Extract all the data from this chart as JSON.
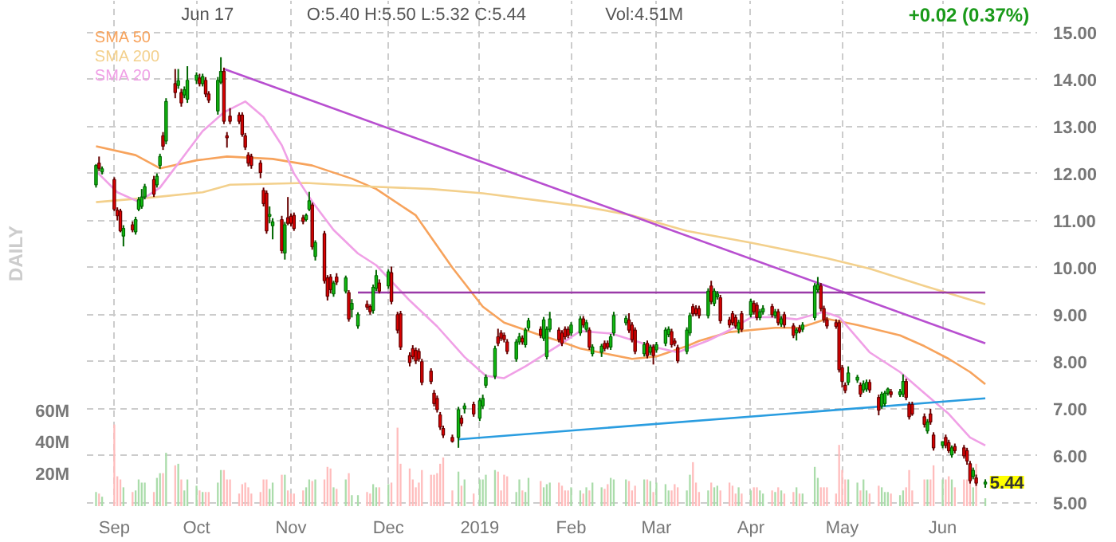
{
  "chart_data": {
    "type": "candlestick",
    "y2label": "DAILY",
    "annotations": [
      "Jun 17",
      "O:5.40 H:5.50 L:5.32 C:5.44",
      "Vol:4.51M",
      "+0.02 (0.37%)",
      {
        "text": "5.44",
        "x": "2019-06-17",
        "y": 5.44
      }
    ],
    "x": [
      "2018-08-29",
      "2018-08-30",
      "2018-08-31",
      "2018-09-04",
      "2018-09-05",
      "2018-09-06",
      "2018-09-07",
      "2018-09-10",
      "2018-09-11",
      "2018-09-12",
      "2018-09-13",
      "2018-09-14",
      "2018-09-17",
      "2018-09-18",
      "2018-09-19",
      "2018-09-20",
      "2018-09-21",
      "2018-09-24",
      "2018-09-25",
      "2018-09-26",
      "2018-09-27",
      "2018-09-28",
      "2018-10-01",
      "2018-10-02",
      "2018-10-03",
      "2018-10-04",
      "2018-10-05",
      "2018-10-08",
      "2018-10-09",
      "2018-10-10",
      "2018-10-11",
      "2018-10-12",
      "2018-10-15",
      "2018-10-16",
      "2018-10-17",
      "2018-10-18",
      "2018-10-19",
      "2018-10-22",
      "2018-10-23",
      "2018-10-24",
      "2018-10-25",
      "2018-10-26",
      "2018-10-29",
      "2018-10-30",
      "2018-10-31",
      "2018-11-01",
      "2018-11-02",
      "2018-11-05",
      "2018-11-06",
      "2018-11-07",
      "2018-11-08",
      "2018-11-09",
      "2018-11-12",
      "2018-11-13",
      "2018-11-14",
      "2018-11-15",
      "2018-11-16",
      "2018-11-19",
      "2018-11-20",
      "2018-11-21",
      "2018-11-23",
      "2018-11-26",
      "2018-11-27",
      "2018-11-28",
      "2018-11-29",
      "2018-11-30",
      "2018-12-03",
      "2018-12-04",
      "2018-12-06",
      "2018-12-07",
      "2018-12-10",
      "2018-12-11",
      "2018-12-12",
      "2018-12-13",
      "2018-12-14",
      "2018-12-17",
      "2018-12-18",
      "2018-12-19",
      "2018-12-20",
      "2018-12-21",
      "2018-12-24",
      "2018-12-26",
      "2018-12-27",
      "2018-12-28",
      "2018-12-31",
      "2019-01-02",
      "2019-01-03",
      "2019-01-04",
      "2019-01-07",
      "2019-01-08",
      "2019-01-09",
      "2019-01-10",
      "2019-01-11",
      "2019-01-14",
      "2019-01-15",
      "2019-01-16",
      "2019-01-17",
      "2019-01-18",
      "2019-01-22",
      "2019-01-23",
      "2019-01-24",
      "2019-01-25",
      "2019-01-28",
      "2019-01-29",
      "2019-01-30",
      "2019-01-31",
      "2019-02-01",
      "2019-02-04",
      "2019-02-05",
      "2019-02-06",
      "2019-02-07",
      "2019-02-08",
      "2019-02-11",
      "2019-02-12",
      "2019-02-13",
      "2019-02-14",
      "2019-02-15",
      "2019-02-19",
      "2019-02-20",
      "2019-02-21",
      "2019-02-22",
      "2019-02-25",
      "2019-02-26",
      "2019-02-27",
      "2019-02-28",
      "2019-03-01",
      "2019-03-04",
      "2019-03-05",
      "2019-03-06",
      "2019-03-07",
      "2019-03-08",
      "2019-03-11",
      "2019-03-12",
      "2019-03-13",
      "2019-03-14",
      "2019-03-15",
      "2019-03-18",
      "2019-03-19",
      "2019-03-20",
      "2019-03-21",
      "2019-03-22",
      "2019-03-25",
      "2019-03-26",
      "2019-03-27",
      "2019-03-28",
      "2019-03-29",
      "2019-04-01",
      "2019-04-02",
      "2019-04-03",
      "2019-04-04",
      "2019-04-05",
      "2019-04-08",
      "2019-04-09",
      "2019-04-10",
      "2019-04-11",
      "2019-04-12",
      "2019-04-15",
      "2019-04-16",
      "2019-04-17",
      "2019-04-18",
      "2019-04-22",
      "2019-04-23",
      "2019-04-24",
      "2019-04-25",
      "2019-04-26",
      "2019-04-29",
      "2019-04-30",
      "2019-05-01",
      "2019-05-02",
      "2019-05-03",
      "2019-05-06",
      "2019-05-07",
      "2019-05-08",
      "2019-05-09",
      "2019-05-10",
      "2019-05-13",
      "2019-05-14",
      "2019-05-15",
      "2019-05-16",
      "2019-05-17",
      "2019-05-20",
      "2019-05-21",
      "2019-05-22",
      "2019-05-23",
      "2019-05-24",
      "2019-05-28",
      "2019-05-29",
      "2019-05-30",
      "2019-05-31",
      "2019-06-03",
      "2019-06-04",
      "2019-06-05",
      "2019-06-06",
      "2019-06-07",
      "2019-06-10",
      "2019-06-11",
      "2019-06-12",
      "2019-06-13",
      "2019-06-14",
      "2019-06-17"
    ],
    "ohlc": [
      [
        11.76,
        12.2,
        11.7,
        12.17
      ],
      [
        12.22,
        12.36,
        12.05,
        12.11
      ],
      [
        12.04,
        12.15,
        11.98,
        12.1
      ],
      [
        11.87,
        11.92,
        11.2,
        11.24
      ],
      [
        11.22,
        11.28,
        11.0,
        11.1
      ],
      [
        11.2,
        11.25,
        10.75,
        10.78
      ],
      [
        10.67,
        10.9,
        10.45,
        10.83
      ],
      [
        10.91,
        10.98,
        10.75,
        10.8
      ],
      [
        10.76,
        11.08,
        10.7,
        11.02
      ],
      [
        11.24,
        11.5,
        11.2,
        11.44
      ],
      [
        11.3,
        11.67,
        11.25,
        11.5
      ],
      [
        11.5,
        11.78,
        11.45,
        11.72
      ],
      [
        11.87,
        11.95,
        11.5,
        11.56
      ],
      [
        11.76,
        12.0,
        11.7,
        11.94
      ],
      [
        12.17,
        12.42,
        12.1,
        12.36
      ],
      [
        12.8,
        12.88,
        12.5,
        12.58
      ],
      [
        12.69,
        13.6,
        12.62,
        13.53
      ],
      [
        13.91,
        14.22,
        13.6,
        13.72
      ],
      [
        13.87,
        14.22,
        13.8,
        13.97
      ],
      [
        13.72,
        13.8,
        13.42,
        13.5
      ],
      [
        13.67,
        13.85,
        13.6,
        13.78
      ],
      [
        13.58,
        14.28,
        13.5,
        13.98
      ],
      [
        13.98,
        14.15,
        13.9,
        14.09
      ],
      [
        14.03,
        14.12,
        13.85,
        13.91
      ],
      [
        13.91,
        14.12,
        13.85,
        14.06
      ],
      [
        13.98,
        14.05,
        13.62,
        13.69
      ],
      [
        13.69,
        13.75,
        13.5,
        13.56
      ],
      [
        13.33,
        14.05,
        13.25,
        13.98
      ],
      [
        13.94,
        14.47,
        13.9,
        14.17
      ],
      [
        14.17,
        14.25,
        13.05,
        13.11
      ],
      [
        12.8,
        12.88,
        12.55,
        12.76
      ],
      [
        13.22,
        13.39,
        13.05,
        13.11
      ],
      [
        13.24,
        13.3,
        13.05,
        13.11
      ],
      [
        13.24,
        13.3,
        12.78,
        12.83
      ],
      [
        12.8,
        12.86,
        12.5,
        12.56
      ],
      [
        12.39,
        12.45,
        12.15,
        12.22
      ],
      [
        12.36,
        12.42,
        12.1,
        12.17
      ],
      [
        12.22,
        12.28,
        11.9,
        12.02
      ],
      [
        11.64,
        11.7,
        11.3,
        11.36
      ],
      [
        11.58,
        11.64,
        10.72,
        10.78
      ],
      [
        11.09,
        11.3,
        10.94,
        11.13
      ],
      [
        10.89,
        11.05,
        10.6,
        10.97
      ],
      [
        11.02,
        11.1,
        10.3,
        10.36
      ],
      [
        10.31,
        10.97,
        10.17,
        10.91
      ],
      [
        11.06,
        11.5,
        10.9,
        10.94
      ],
      [
        11.09,
        11.15,
        10.88,
        10.94
      ],
      [
        11.11,
        11.17,
        10.78,
        10.83
      ],
      [
        11.06,
        11.12,
        10.92,
        10.98
      ],
      [
        11.02,
        11.15,
        10.98,
        11.11
      ],
      [
        11.24,
        11.61,
        11.2,
        11.42
      ],
      [
        11.33,
        11.38,
        10.38,
        10.44
      ],
      [
        10.24,
        10.58,
        10.15,
        10.53
      ],
      [
        10.72,
        10.78,
        9.66,
        9.72
      ],
      [
        9.78,
        9.84,
        9.3,
        9.39
      ],
      [
        9.8,
        9.86,
        9.45,
        9.53
      ],
      [
        9.44,
        9.72,
        9.38,
        9.67
      ],
      [
        9.8,
        9.88,
        9.63,
        9.69
      ],
      [
        9.5,
        9.83,
        9.45,
        9.78
      ],
      [
        9.47,
        9.52,
        8.85,
        8.91
      ],
      [
        9.11,
        9.33,
        8.94,
        9.24
      ],
      [
        8.76,
        9.05,
        8.7,
        9.0
      ],
      [
        9.22,
        9.3,
        9.1,
        9.16
      ],
      [
        9.17,
        9.22,
        9.0,
        9.06
      ],
      [
        9.09,
        9.64,
        9.02,
        9.58
      ],
      [
        9.56,
        9.95,
        9.5,
        9.83
      ],
      [
        9.67,
        9.75,
        9.45,
        9.5
      ],
      [
        9.61,
        9.96,
        9.55,
        9.91
      ],
      [
        9.89,
        10.02,
        9.22,
        9.28
      ],
      [
        9.0,
        9.06,
        8.6,
        8.67
      ],
      [
        9.02,
        9.08,
        8.25,
        8.31
      ],
      [
        8.13,
        8.2,
        7.9,
        7.98
      ],
      [
        8.28,
        8.35,
        8.05,
        8.11
      ],
      [
        8.24,
        8.3,
        7.95,
        8.02
      ],
      [
        8.22,
        8.28,
        8.0,
        8.06
      ],
      [
        8.0,
        8.06,
        7.5,
        7.56
      ],
      [
        7.8,
        7.86,
        7.52,
        7.58
      ],
      [
        7.33,
        7.4,
        7.05,
        7.11
      ],
      [
        7.22,
        7.28,
        6.92,
        6.98
      ],
      [
        6.87,
        6.93,
        6.55,
        6.61
      ],
      [
        6.58,
        6.64,
        6.38,
        6.44
      ],
      [
        6.39,
        6.45,
        6.28,
        6.31
      ],
      [
        6.39,
        7.04,
        6.17,
        6.98
      ],
      [
        6.8,
        6.86,
        6.63,
        6.69
      ],
      [
        7.0,
        7.12,
        6.9,
        7.06
      ],
      [
        7.09,
        7.15,
        6.83,
        6.89
      ],
      [
        6.8,
        7.23,
        6.74,
        7.17
      ],
      [
        7.06,
        7.3,
        7.0,
        7.22
      ],
      [
        7.5,
        7.73,
        7.44,
        7.67
      ],
      [
        7.69,
        8.34,
        7.63,
        8.28
      ],
      [
        8.53,
        8.7,
        8.33,
        8.39
      ],
      [
        8.61,
        8.67,
        8.44,
        8.5
      ],
      [
        8.56,
        8.62,
        8.41,
        8.47
      ],
      [
        8.42,
        8.48,
        8.16,
        8.22
      ],
      [
        8.06,
        8.48,
        8.0,
        8.42
      ],
      [
        8.42,
        8.61,
        8.36,
        8.53
      ],
      [
        8.5,
        8.56,
        8.36,
        8.42
      ],
      [
        8.36,
        8.72,
        8.3,
        8.67
      ],
      [
        8.72,
        8.93,
        8.66,
        8.87
      ],
      [
        8.69,
        8.75,
        8.5,
        8.56
      ],
      [
        8.5,
        8.95,
        8.44,
        8.89
      ],
      [
        8.11,
        8.75,
        8.05,
        8.69
      ],
      [
        8.69,
        9.06,
        8.63,
        8.91
      ],
      [
        8.67,
        8.73,
        8.41,
        8.47
      ],
      [
        8.61,
        8.67,
        8.33,
        8.39
      ],
      [
        8.69,
        8.75,
        8.47,
        8.53
      ],
      [
        8.69,
        8.75,
        8.5,
        8.56
      ],
      [
        8.61,
        8.84,
        8.55,
        8.78
      ],
      [
        8.61,
        8.97,
        8.55,
        8.91
      ],
      [
        8.91,
        8.97,
        8.72,
        8.78
      ],
      [
        8.69,
        8.89,
        8.63,
        8.83
      ],
      [
        8.67,
        8.73,
        8.25,
        8.31
      ],
      [
        8.17,
        8.37,
        8.11,
        8.31
      ],
      [
        8.2,
        8.38,
        8.1,
        8.33
      ],
      [
        8.39,
        8.45,
        8.22,
        8.28
      ],
      [
        8.39,
        8.45,
        8.26,
        8.31
      ],
      [
        8.31,
        8.59,
        8.25,
        8.53
      ],
      [
        8.61,
        9.06,
        8.55,
        8.98
      ],
      [
        8.83,
        8.98,
        8.77,
        8.92
      ],
      [
        8.89,
        9.03,
        8.61,
        8.67
      ],
      [
        8.78,
        8.84,
        8.41,
        8.47
      ],
      [
        8.67,
        8.73,
        8.16,
        8.22
      ],
      [
        8.17,
        8.42,
        8.11,
        8.36
      ],
      [
        8.39,
        8.45,
        8.07,
        8.13
      ],
      [
        8.2,
        8.36,
        8.14,
        8.31
      ],
      [
        8.31,
        8.37,
        7.94,
        8.13
      ],
      [
        8.25,
        8.42,
        8.19,
        8.36
      ],
      [
        8.39,
        8.73,
        8.33,
        8.67
      ],
      [
        8.58,
        8.75,
        8.52,
        8.69
      ],
      [
        8.64,
        8.7,
        8.3,
        8.36
      ],
      [
        8.44,
        8.5,
        8.33,
        8.39
      ],
      [
        8.3,
        8.36,
        7.97,
        8.02
      ],
      [
        8.22,
        8.73,
        8.16,
        8.67
      ],
      [
        8.61,
        9.04,
        8.55,
        8.98
      ],
      [
        9.17,
        9.23,
        8.96,
        9.02
      ],
      [
        9.13,
        9.2,
        8.97,
        9.02
      ],
      [
        9.13,
        9.19,
        8.92,
        8.98
      ],
      [
        8.98,
        9.56,
        8.92,
        9.5
      ],
      [
        9.61,
        9.72,
        9.22,
        9.28
      ],
      [
        9.24,
        9.56,
        9.18,
        9.5
      ],
      [
        9.38,
        9.5,
        9.32,
        9.44
      ],
      [
        9.36,
        9.42,
        8.81,
        8.87
      ],
      [
        8.89,
        8.95,
        8.72,
        8.78
      ],
      [
        9.02,
        9.08,
        8.77,
        8.83
      ],
      [
        8.94,
        9.0,
        8.7,
        8.76
      ],
      [
        8.69,
        8.89,
        8.6,
        8.83
      ],
      [
        9.02,
        9.08,
        8.63,
        8.69
      ],
      [
        9.0,
        9.34,
        8.94,
        9.28
      ],
      [
        9.24,
        9.3,
        9.0,
        9.06
      ],
      [
        9.2,
        9.26,
        8.88,
        8.94
      ],
      [
        8.94,
        9.12,
        8.88,
        9.06
      ],
      [
        9.06,
        9.2,
        9.0,
        9.13
      ],
      [
        9.17,
        9.23,
        8.94,
        9.0
      ],
      [
        8.98,
        9.12,
        8.92,
        9.06
      ],
      [
        9.06,
        9.12,
        8.77,
        8.83
      ],
      [
        8.8,
        8.97,
        8.74,
        8.91
      ],
      [
        9.0,
        9.06,
        8.72,
        8.78
      ],
      [
        8.76,
        8.82,
        8.5,
        8.56
      ],
      [
        8.61,
        8.72,
        8.45,
        8.67
      ],
      [
        8.72,
        8.78,
        8.6,
        8.64
      ],
      [
        8.69,
        8.84,
        8.63,
        8.78
      ],
      [
        8.94,
        9.67,
        8.88,
        9.61
      ],
      [
        9.53,
        9.8,
        9.47,
        9.64
      ],
      [
        9.61,
        9.67,
        9.07,
        9.13
      ],
      [
        9.13,
        9.19,
        8.83,
        8.89
      ],
      [
        8.89,
        8.95,
        8.7,
        8.76
      ],
      [
        8.83,
        8.9,
        8.7,
        8.75
      ],
      [
        8.83,
        8.89,
        7.77,
        7.83
      ],
      [
        7.87,
        7.93,
        7.45,
        7.58
      ],
      [
        7.5,
        7.56,
        7.33,
        7.39
      ],
      [
        7.56,
        7.9,
        7.5,
        7.76
      ],
      [
        7.61,
        7.72,
        7.55,
        7.67
      ],
      [
        7.5,
        7.56,
        7.25,
        7.31
      ],
      [
        7.4,
        7.6,
        7.34,
        7.53
      ],
      [
        7.42,
        7.62,
        7.36,
        7.56
      ],
      [
        7.56,
        7.62,
        7.34,
        7.4
      ],
      [
        7.24,
        7.3,
        6.86,
        6.97
      ],
      [
        7.06,
        7.36,
        7.0,
        7.31
      ],
      [
        7.11,
        7.38,
        7.05,
        7.33
      ],
      [
        7.33,
        7.45,
        7.28,
        7.42
      ],
      [
        7.36,
        7.42,
        7.24,
        7.3
      ],
      [
        7.3,
        7.42,
        7.25,
        7.36
      ],
      [
        7.31,
        7.73,
        7.25,
        7.58
      ],
      [
        7.58,
        7.64,
        7.18,
        7.24
      ],
      [
        7.09,
        7.15,
        6.77,
        6.83
      ],
      [
        7.09,
        7.15,
        6.85,
        6.89
      ],
      [
        6.83,
        6.9,
        6.6,
        6.67
      ],
      [
        6.53,
        6.78,
        6.47,
        6.72
      ],
      [
        6.89,
        7.0,
        6.66,
        6.72
      ],
      [
        6.44,
        6.5,
        6.11,
        6.17
      ],
      [
        6.22,
        6.3,
        6.16,
        6.3
      ],
      [
        6.39,
        6.45,
        6.16,
        6.22
      ],
      [
        6.28,
        6.34,
        6.06,
        6.11
      ],
      [
        6.02,
        6.22,
        5.96,
        6.17
      ],
      [
        6.2,
        6.26,
        6.05,
        6.11
      ],
      [
        6.17,
        6.23,
        5.94,
        6.0
      ],
      [
        6.11,
        6.17,
        5.81,
        5.89
      ],
      [
        5.83,
        5.89,
        5.41,
        5.47
      ],
      [
        5.56,
        5.75,
        5.5,
        5.69
      ],
      [
        5.53,
        5.6,
        5.36,
        5.42
      ],
      [
        5.4,
        5.5,
        5.32,
        5.44
      ]
    ],
    "series": [
      {
        "type": "bar",
        "axis": "y2",
        "values": [
          9,
          8,
          6,
          52,
          19,
          17,
          12,
          9,
          10,
          17,
          15,
          15,
          9,
          18,
          21,
          21,
          34,
          26,
          27,
          17,
          10,
          17,
          13,
          10,
          9,
          9,
          9,
          15,
          23,
          23,
          17,
          17,
          8,
          14,
          15,
          12,
          8,
          9,
          17,
          17,
          11,
          15,
          20,
          20,
          10,
          8,
          8,
          10,
          12,
          17,
          16,
          17,
          17,
          25,
          24,
          12,
          11,
          17,
          21,
          7,
          7,
          9,
          8,
          14,
          12,
          12,
          14,
          15,
          50,
          27,
          24,
          17,
          12,
          15,
          23,
          20,
          20,
          21,
          27,
          31,
          10,
          22,
          13,
          17,
          8,
          17,
          17,
          20,
          23,
          22,
          10,
          20,
          19,
          9,
          17,
          10,
          9,
          18,
          16,
          12,
          14,
          15,
          15,
          13,
          10,
          10,
          12,
          10,
          8,
          12,
          10,
          15,
          12,
          11,
          14,
          18,
          17,
          17,
          16,
          10,
          13,
          17,
          17,
          16,
          9,
          15,
          14,
          10,
          10,
          14,
          12,
          10,
          20,
          28,
          15,
          9,
          10,
          15,
          12,
          13,
          10,
          15,
          13,
          8,
          12,
          8,
          10,
          12,
          12,
          10,
          8,
          10,
          9,
          12,
          10,
          8,
          9,
          12,
          8,
          8,
          25,
          18,
          12,
          12,
          12,
          8,
          39,
          23,
          17,
          17,
          15,
          10,
          17,
          10,
          8,
          13,
          12,
          9,
          9,
          8,
          7,
          10,
          12,
          23,
          10,
          17,
          17,
          17,
          26,
          17,
          17,
          19,
          17,
          12,
          17,
          17,
          19,
          12,
          27,
          5
        ],
        "colors": [
          "#aadcaa",
          "#ffbcbc",
          "#aadcaa",
          "#ffbcbc",
          "#ffbcbc",
          "#ffbcbc",
          "#aadcaa",
          "#ffbcbc",
          "#aadcaa",
          "#aadcaa",
          "#aadcaa",
          "#aadcaa",
          "#ffbcbc",
          "#aadcaa",
          "#aadcaa",
          "#ffbcbc",
          "#aadcaa",
          "#ffbcbc",
          "#aadcaa",
          "#ffbcbc",
          "#aadcaa",
          "#aadcaa",
          "#aadcaa",
          "#ffbcbc",
          "#aadcaa",
          "#ffbcbc",
          "#ffbcbc",
          "#aadcaa",
          "#aadcaa",
          "#ffbcbc",
          "#ffbcbc",
          "#ffbcbc",
          "#ffbcbc",
          "#ffbcbc",
          "#ffbcbc",
          "#ffbcbc",
          "#ffbcbc",
          "#ffbcbc",
          "#ffbcbc",
          "#ffbcbc",
          "#aadcaa",
          "#aadcaa",
          "#ffbcbc",
          "#aadcaa",
          "#ffbcbc",
          "#ffbcbc",
          "#ffbcbc",
          "#ffbcbc",
          "#aadcaa",
          "#aadcaa",
          "#ffbcbc",
          "#aadcaa",
          "#ffbcbc",
          "#ffbcbc",
          "#ffbcbc",
          "#aadcaa",
          "#ffbcbc",
          "#aadcaa",
          "#ffbcbc",
          "#aadcaa",
          "#aadcaa",
          "#ffbcbc",
          "#ffbcbc",
          "#aadcaa",
          "#aadcaa",
          "#ffbcbc",
          "#aadcaa",
          "#ffbcbc",
          "#ffbcbc",
          "#ffbcbc",
          "#ffbcbc",
          "#ffbcbc",
          "#ffbcbc",
          "#ffbcbc",
          "#ffbcbc",
          "#ffbcbc",
          "#ffbcbc",
          "#ffbcbc",
          "#ffbcbc",
          "#ffbcbc",
          "#ffbcbc",
          "#aadcaa",
          "#ffbcbc",
          "#aadcaa",
          "#ffbcbc",
          "#aadcaa",
          "#aadcaa",
          "#aadcaa",
          "#aadcaa",
          "#ffbcbc",
          "#ffbcbc",
          "#ffbcbc",
          "#ffbcbc",
          "#aadcaa",
          "#aadcaa",
          "#ffbcbc",
          "#aadcaa",
          "#aadcaa",
          "#ffbcbc",
          "#aadcaa",
          "#aadcaa",
          "#aadcaa",
          "#ffbcbc",
          "#ffbcbc",
          "#ffbcbc",
          "#ffbcbc",
          "#aadcaa",
          "#aadcaa",
          "#ffbcbc",
          "#aadcaa",
          "#ffbcbc",
          "#aadcaa",
          "#aadcaa",
          "#ffbcbc",
          "#ffbcbc",
          "#aadcaa",
          "#aadcaa",
          "#aadcaa",
          "#ffbcbc",
          "#ffbcbc",
          "#ffbcbc",
          "#aadcaa",
          "#ffbcbc",
          "#aadcaa",
          "#ffbcbc",
          "#aadcaa",
          "#aadcaa",
          "#aadcaa",
          "#ffbcbc",
          "#ffbcbc",
          "#ffbcbc",
          "#aadcaa",
          "#aadcaa",
          "#ffbcbc",
          "#ffbcbc",
          "#ffbcbc",
          "#aadcaa",
          "#ffbcbc",
          "#aadcaa",
          "#aadcaa",
          "#ffbcbc",
          "#ffbcbc",
          "#ffbcbc",
          "#ffbcbc",
          "#aadcaa",
          "#ffbcbc",
          "#aadcaa",
          "#ffbcbc",
          "#ffbcbc",
          "#aadcaa",
          "#aadcaa",
          "#ffbcbc",
          "#aadcaa",
          "#ffbcbc",
          "#aadcaa",
          "#ffbcbc",
          "#ffbcbc",
          "#aadcaa",
          "#ffbcbc",
          "#aadcaa",
          "#aadcaa",
          "#aadcaa",
          "#ffbcbc",
          "#ffbcbc",
          "#ffbcbc",
          "#ffbcbc",
          "#ffbcbc",
          "#ffbcbc",
          "#ffbcbc",
          "#aadcaa",
          "#aadcaa",
          "#ffbcbc",
          "#aadcaa",
          "#aadcaa",
          "#ffbcbc",
          "#ffbcbc",
          "#aadcaa",
          "#aadcaa",
          "#aadcaa",
          "#ffbcbc",
          "#aadcaa",
          "#aadcaa",
          "#ffbcbc",
          "#ffbcbc",
          "#ffbcbc",
          "#ffbcbc",
          "#aadcaa",
          "#ffbcbc",
          "#ffbcbc",
          "#aadcaa",
          "#ffbcbc",
          "#ffbcbc",
          "#aadcaa",
          "#ffbcbc",
          "#ffbcbc",
          "#ffbcbc",
          "#ffbcbc",
          "#aadcaa",
          "#ffbcbc",
          "#aadcaa"
        ]
      },
      {
        "type": "line",
        "name": "SMA 50",
        "color": "#f7a35c",
        "x": [
          "2018-08-29",
          "2018-09-11",
          "2018-09-19",
          "2018-10-01",
          "2018-10-11",
          "2018-10-26",
          "2018-11-08",
          "2018-11-21",
          "2018-11-29",
          "2018-12-12",
          "2018-12-24",
          "2019-01-03",
          "2019-01-10",
          "2019-01-22",
          "2019-01-28",
          "2019-02-04",
          "2019-02-21",
          "2019-03-01",
          "2019-03-11",
          "2019-03-15",
          "2019-03-25",
          "2019-04-09",
          "2019-04-17",
          "2019-04-26",
          "2019-05-06",
          "2019-05-20",
          "2019-05-28",
          "2019-06-05",
          "2019-06-12",
          "2019-06-17"
        ],
        "values": [
          12.58,
          12.39,
          12.11,
          12.28,
          12.36,
          12.31,
          12.17,
          11.89,
          11.67,
          11.11,
          10.0,
          9.17,
          8.83,
          8.56,
          8.44,
          8.28,
          8.06,
          8.11,
          8.33,
          8.44,
          8.63,
          8.72,
          8.72,
          8.91,
          8.78,
          8.56,
          8.33,
          8.06,
          7.78,
          7.52
        ]
      },
      {
        "type": "line",
        "name": "SMA 200",
        "color": "#f3d08c",
        "x": [
          "2018-08-29",
          "2018-09-18",
          "2018-10-03",
          "2018-10-12",
          "2018-11-06",
          "2018-11-28",
          "2018-12-17",
          "2019-01-03",
          "2019-01-22",
          "2019-02-04",
          "2019-02-21",
          "2019-03-11",
          "2019-04-01",
          "2019-04-26",
          "2019-05-10",
          "2019-05-28",
          "2019-06-17"
        ],
        "values": [
          11.39,
          11.5,
          11.6,
          11.76,
          11.8,
          11.72,
          11.67,
          11.58,
          11.42,
          11.31,
          11.11,
          10.78,
          10.53,
          10.2,
          9.98,
          9.61,
          9.22
        ]
      },
      {
        "type": "line",
        "name": "SMA 20",
        "color": "#f0a0e6",
        "x": [
          "2018-08-29",
          "2018-09-05",
          "2018-09-12",
          "2018-09-19",
          "2018-09-26",
          "2018-10-03",
          "2018-10-10",
          "2018-10-17",
          "2018-10-23",
          "2018-10-29",
          "2018-11-02",
          "2018-11-08",
          "2018-11-15",
          "2018-11-23",
          "2018-11-29",
          "2018-12-10",
          "2018-12-19",
          "2018-12-28",
          "2019-01-04",
          "2019-01-10",
          "2019-01-17",
          "2019-01-28",
          "2019-02-04",
          "2019-02-14",
          "2019-03-01",
          "2019-03-08",
          "2019-03-18",
          "2019-03-25",
          "2019-04-01",
          "2019-04-09",
          "2019-04-16",
          "2019-04-25",
          "2019-04-30",
          "2019-05-10",
          "2019-05-20",
          "2019-05-28",
          "2019-06-05",
          "2019-06-12",
          "2019-06-17"
        ],
        "values": [
          12.05,
          11.6,
          11.4,
          11.7,
          12.3,
          12.9,
          13.3,
          13.53,
          13.2,
          12.6,
          12.0,
          11.4,
          10.8,
          10.3,
          10.05,
          9.3,
          8.75,
          8.1,
          7.7,
          7.65,
          7.9,
          8.35,
          8.65,
          8.6,
          8.3,
          8.2,
          8.45,
          8.67,
          8.94,
          8.95,
          8.9,
          9.06,
          8.95,
          8.2,
          7.78,
          7.33,
          6.89,
          6.39,
          6.22
        ]
      },
      {
        "type": "line",
        "color": "#b84fd0",
        "x": [
          "2018-10-10",
          "2019-06-17"
        ],
        "values": [
          14.22,
          8.39
        ]
      },
      {
        "type": "line",
        "color": "#9a3aa8",
        "x": [
          "2018-11-23",
          "2019-06-17"
        ],
        "values": [
          9.47,
          9.47
        ]
      },
      {
        "type": "line",
        "color": "#2a9de0",
        "x": [
          "2018-12-26",
          "2019-06-17"
        ],
        "values": [
          6.35,
          7.22
        ]
      }
    ],
    "xlim": [
      "2018-08-26",
      "2019-07-04"
    ],
    "xticks": [
      {
        "value": "2018-09-04",
        "label": "Sep"
      },
      {
        "value": "2018-10-01",
        "label": "Oct"
      },
      {
        "value": "2018-11-01",
        "label": "Nov"
      },
      {
        "value": "2018-12-03",
        "label": "Dec"
      },
      {
        "value": "2019-01-02",
        "label": "2019"
      },
      {
        "value": "2019-02-01",
        "label": "Feb"
      },
      {
        "value": "2019-03-01",
        "label": "Mar"
      },
      {
        "value": "2019-04-01",
        "label": "Apr"
      },
      {
        "value": "2019-05-01",
        "label": "May"
      },
      {
        "value": "2019-06-03",
        "label": "Jun"
      }
    ],
    "ylim": [
      4.93,
      15.67
    ],
    "yticks": [
      {
        "value": 5,
        "label": "5.00"
      },
      {
        "value": 6,
        "label": "6.00"
      },
      {
        "value": 7,
        "label": "7.00"
      },
      {
        "value": 8,
        "label": "8.00"
      },
      {
        "value": 9,
        "label": "9.00"
      },
      {
        "value": 10,
        "label": "10.00"
      },
      {
        "value": 11,
        "label": "11.00"
      },
      {
        "value": 12,
        "label": "12.00"
      },
      {
        "value": 13,
        "label": "13.00"
      },
      {
        "value": 14,
        "label": "14.00"
      },
      {
        "value": 15,
        "label": "15.00"
      }
    ],
    "y2lim": [
      0,
      322
    ],
    "y2ticks": [
      {
        "value": 20,
        "label": "20M"
      },
      {
        "value": 40,
        "label": "40M"
      },
      {
        "value": 60,
        "label": "60M"
      }
    ],
    "grid": true
  }
}
